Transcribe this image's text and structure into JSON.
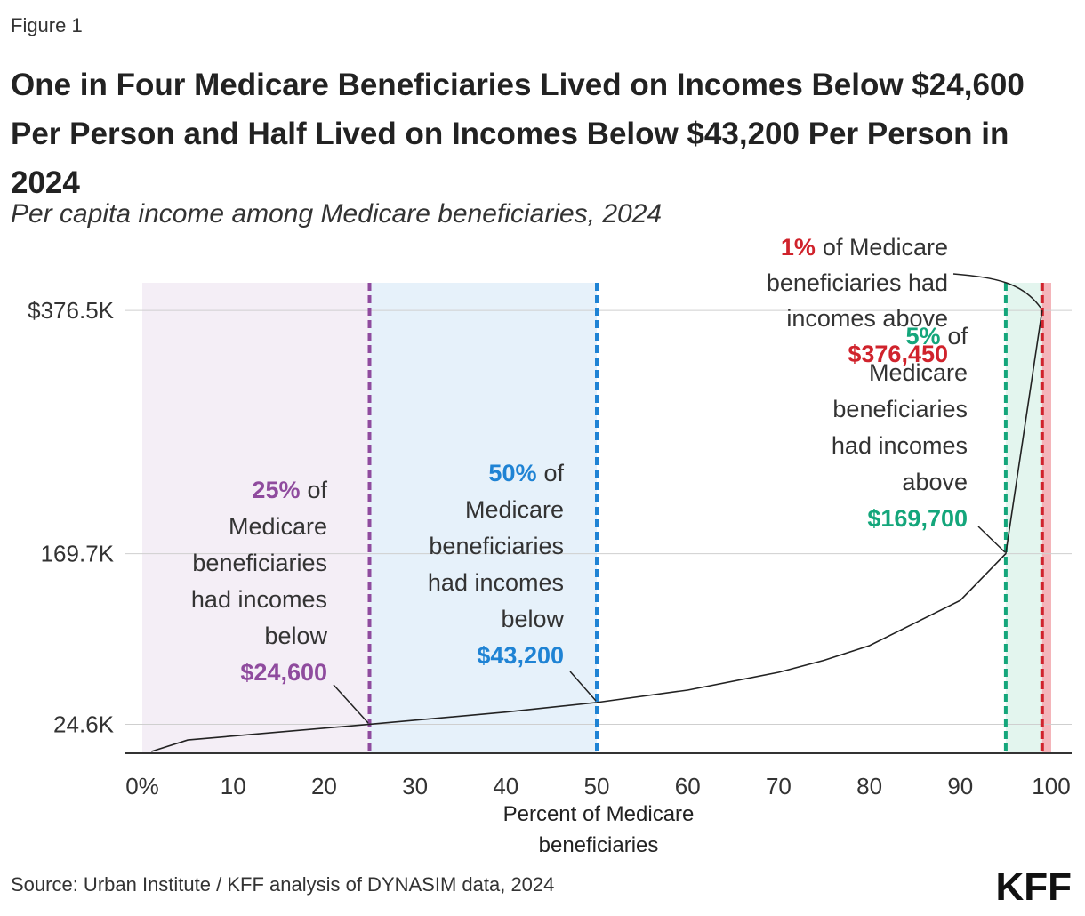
{
  "chart_data": {
    "type": "line",
    "figure_label": "Figure 1",
    "title": "One in Four Medicare Beneficiaries Lived on Incomes Below $24,600 Per Person and Half Lived on Incomes Below $43,200 Per Person in 2024",
    "subtitle": "Per capita income among Medicare beneficiaries, 2024",
    "x_label": "Percent of Medicare beneficiaries",
    "source": "Source: Urban Institute / KFF analysis of DYNASIM data, 2024",
    "logo": "KFF",
    "x": [
      1,
      5,
      25,
      40,
      50,
      60,
      70,
      75,
      80,
      90,
      95,
      99
    ],
    "series": [
      {
        "color": "#222222",
        "values": [
          1500,
          11300,
          24600,
          35000,
          43200,
          53700,
          68800,
          79000,
          91500,
          130000,
          169700,
          376450
        ]
      }
    ],
    "xlim": [
      0,
      100
    ],
    "xticks": [
      {
        "value": 0,
        "label": "0%"
      },
      10,
      20,
      30,
      40,
      50,
      60,
      70,
      80,
      90,
      100
    ],
    "ylim": [
      0,
      400000
    ],
    "yticks": [
      {
        "value": 24600,
        "label": "24.6K"
      },
      {
        "value": 169700,
        "label": "169.7K"
      },
      {
        "value": 376450,
        "label": "$376.5K"
      }
    ],
    "grid": true,
    "annotations": [
      {
        "x": 25,
        "color": "#8f4b9e",
        "shade": "#f4eef6",
        "highlight": "25%",
        "lines": [
          "of",
          "Medicare",
          "beneficiaries",
          "had incomes",
          "below"
        ],
        "amount": "$24,600"
      },
      {
        "x": 50,
        "color": "#1f83d4",
        "shade": "#e6f1fa",
        "highlight": "50%",
        "lines": [
          "of",
          "Medicare",
          "beneficiaries",
          "had incomes",
          "below"
        ],
        "amount": "$43,200"
      },
      {
        "x": 95,
        "color": "#14a67b",
        "shade": "#e3f5ee",
        "highlight": "5%",
        "lines": [
          "of",
          "Medicare",
          "beneficiaries",
          "had incomes",
          "above"
        ],
        "amount": "$169,700"
      },
      {
        "x": 99,
        "color": "#d0232c",
        "shade": "#f4b5ba",
        "highlight": "1%",
        "lines": [
          "of Medicare",
          "beneficiaries had",
          "incomes above"
        ],
        "amount": "$376,450"
      }
    ]
  }
}
